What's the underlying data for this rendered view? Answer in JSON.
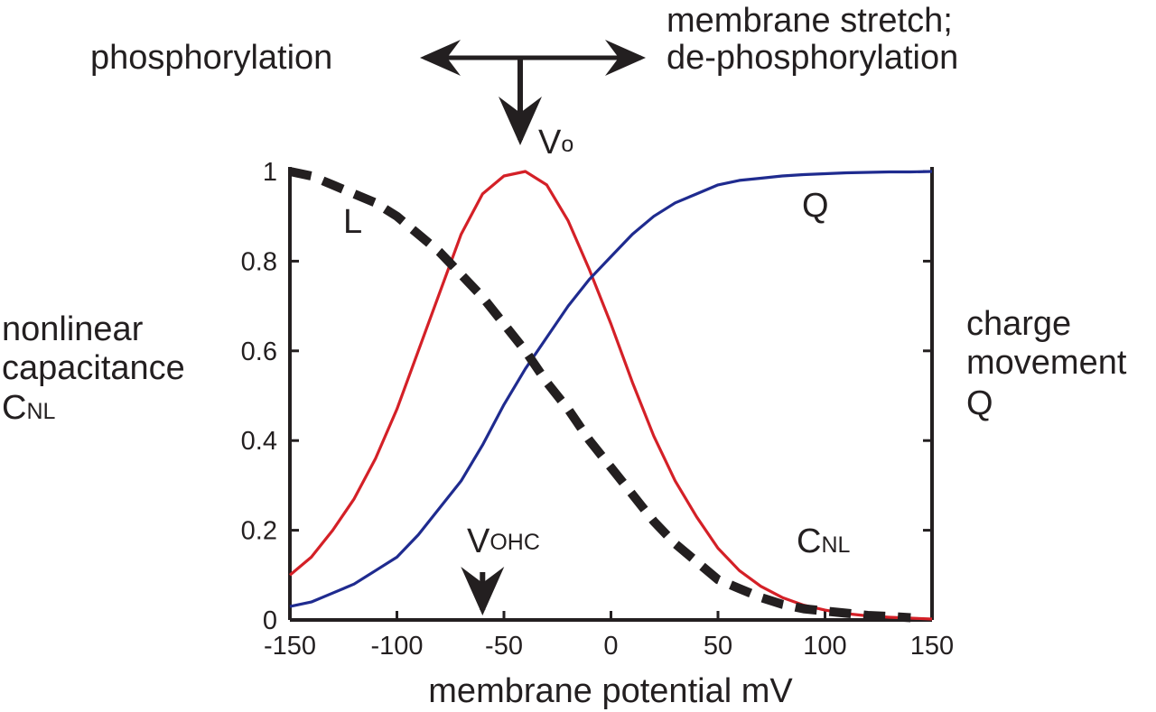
{
  "chart_data": {
    "type": "line",
    "title": "",
    "xlabel": "membrane potential mV",
    "ylabel_left": [
      "nonlinear",
      "capacitance",
      "C",
      "NL"
    ],
    "ylabel_right": [
      "charge",
      "movement",
      "Q"
    ],
    "xlim": [
      -150,
      150
    ],
    "ylim": [
      0,
      1
    ],
    "x_ticks": [
      -150,
      -100,
      -50,
      0,
      50,
      100,
      150
    ],
    "y_ticks": [
      0,
      0.2,
      0.4,
      0.6,
      0.8,
      1
    ],
    "y_tick_labels": [
      "0",
      "0.2",
      "0.4",
      "0.6",
      "0.8",
      "1"
    ],
    "grid": false,
    "series": [
      {
        "name": "CNL",
        "color": "#d42027",
        "style": "solid",
        "x": [
          -150,
          -140,
          -130,
          -120,
          -110,
          -100,
          -90,
          -80,
          -70,
          -60,
          -50,
          -40,
          -30,
          -20,
          -10,
          0,
          10,
          20,
          30,
          40,
          50,
          60,
          70,
          80,
          90,
          100,
          110,
          120,
          130,
          140,
          150
        ],
        "y": [
          0.1,
          0.14,
          0.2,
          0.27,
          0.36,
          0.47,
          0.6,
          0.73,
          0.86,
          0.95,
          0.99,
          1.0,
          0.97,
          0.89,
          0.78,
          0.66,
          0.53,
          0.41,
          0.31,
          0.23,
          0.16,
          0.11,
          0.075,
          0.05,
          0.033,
          0.022,
          0.014,
          0.009,
          0.006,
          0.004,
          0.002
        ]
      },
      {
        "name": "Q",
        "color": "#1f2b8f",
        "style": "solid",
        "x": [
          -150,
          -140,
          -130,
          -120,
          -110,
          -100,
          -90,
          -80,
          -70,
          -60,
          -50,
          -40,
          -30,
          -20,
          -10,
          0,
          10,
          20,
          30,
          40,
          50,
          60,
          70,
          80,
          90,
          100,
          110,
          120,
          130,
          140,
          150
        ],
        "y": [
          0.03,
          0.04,
          0.06,
          0.08,
          0.11,
          0.14,
          0.19,
          0.25,
          0.31,
          0.39,
          0.48,
          0.56,
          0.63,
          0.7,
          0.76,
          0.81,
          0.86,
          0.9,
          0.93,
          0.95,
          0.97,
          0.98,
          0.985,
          0.99,
          0.993,
          0.995,
          0.997,
          0.998,
          0.999,
          0.999,
          1.0
        ]
      },
      {
        "name": "L",
        "color": "#231f20",
        "style": "dashed",
        "x": [
          -150,
          -140,
          -130,
          -120,
          -110,
          -100,
          -90,
          -80,
          -70,
          -60,
          -50,
          -40,
          -30,
          -20,
          -10,
          0,
          10,
          20,
          30,
          40,
          50,
          60,
          70,
          80,
          90,
          100,
          110,
          120,
          130,
          140
        ],
        "y": [
          1.0,
          0.99,
          0.97,
          0.95,
          0.93,
          0.9,
          0.86,
          0.82,
          0.77,
          0.72,
          0.66,
          0.6,
          0.53,
          0.47,
          0.4,
          0.34,
          0.28,
          0.22,
          0.17,
          0.13,
          0.09,
          0.07,
          0.05,
          0.035,
          0.025,
          0.02,
          0.015,
          0.01,
          0.008,
          0.005
        ]
      }
    ],
    "annotations": {
      "L": "L",
      "Q": "Q",
      "CNL_main": "C",
      "CNL_sub": "NL",
      "Vo_main": "V",
      "Vo_sub": "o",
      "Vohc_main": "V",
      "Vohc_sub": "OHC",
      "Vohc_x": -60,
      "Vo_x": -40,
      "left_effect": "phosphorylation",
      "right_effect_line1": "membrane stretch;",
      "right_effect_line2": "de-phosphorylation"
    }
  }
}
